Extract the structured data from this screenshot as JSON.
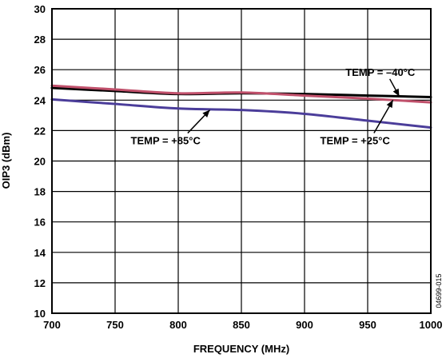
{
  "chart_data": {
    "type": "line",
    "xlabel": "FREQUENCY (MHz)",
    "ylabel": "OIP3 (dBm)",
    "xlim": [
      700,
      1000
    ],
    "ylim": [
      10,
      30
    ],
    "x_ticks": [
      700,
      750,
      800,
      850,
      900,
      950,
      1000
    ],
    "y_ticks": [
      10,
      12,
      14,
      16,
      18,
      20,
      22,
      24,
      26,
      28,
      30
    ],
    "grid": true,
    "series": [
      {
        "name": "TEMP = –40°C",
        "color": "#000000",
        "x": [
          700,
          750,
          800,
          850,
          900,
          950,
          1000
        ],
        "y": [
          24.8,
          24.6,
          24.4,
          24.45,
          24.4,
          24.3,
          24.2
        ]
      },
      {
        "name": "TEMP = +25°C",
        "color": "#c0506b",
        "x": [
          700,
          750,
          800,
          850,
          900,
          950,
          1000
        ],
        "y": [
          24.95,
          24.7,
          24.45,
          24.5,
          24.3,
          24.1,
          23.85
        ]
      },
      {
        "name": "TEMP = +85°C",
        "color": "#4b3d9a",
        "x": [
          700,
          750,
          800,
          850,
          900,
          950,
          1000
        ],
        "y": [
          24.05,
          23.75,
          23.45,
          23.35,
          23.1,
          22.65,
          22.2
        ]
      }
    ],
    "annotations": [
      {
        "text": "TEMP = –40°C",
        "x": 960,
        "y": 25.6,
        "arrow_to": [
          975,
          24.25
        ]
      },
      {
        "text": "TEMP = +85°C",
        "x": 790,
        "y": 21.1,
        "arrow_to": [
          825,
          23.35
        ]
      },
      {
        "text": "TEMP = +25°C",
        "x": 940,
        "y": 21.1,
        "arrow_to": [
          970,
          24.0
        ]
      }
    ],
    "figure_id": "04699-015"
  }
}
